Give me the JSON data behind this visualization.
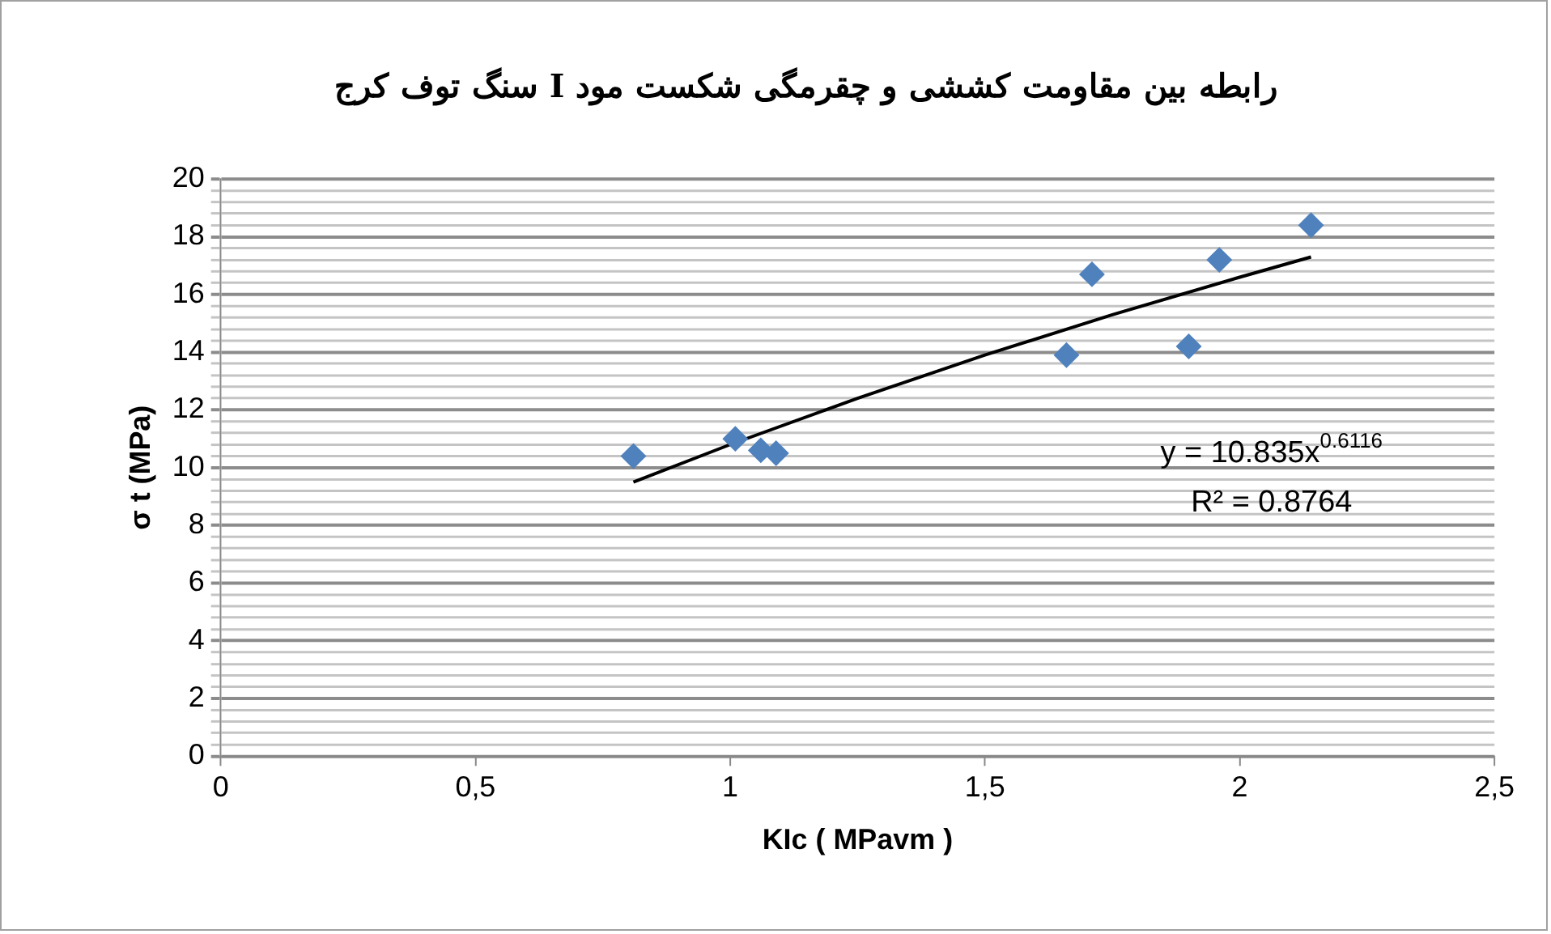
{
  "chart_data": {
    "type": "scatter",
    "title": "رابطه بین مقاومت کششی و چقرمگی شکست مود I سنگ توف کرج",
    "xlabel": "KIc ( MPavm )",
    "ylabel": "σ t (MPa)",
    "annotations": [
      "y = 10.835x$^{0.6116}$",
      "R² = 0.8764"
    ],
    "series": [
      {
        "color": "#4f81bd",
        "marker": "diamond",
        "x": [
          0.81,
          1.01,
          1.06,
          1.09,
          1.66,
          1.71,
          1.9,
          1.96,
          2.14
        ],
        "values": [
          10.4,
          11.0,
          10.6,
          10.5,
          13.9,
          16.7,
          14.2,
          17.2,
          18.4
        ]
      },
      {
        "type": "line",
        "color": "#000000",
        "marker": "none",
        "line_style": "solid",
        "x": [
          0.81,
          1.0,
          1.25,
          1.5,
          1.75,
          2.0,
          2.14
        ],
        "values": [
          9.5,
          10.8,
          12.4,
          13.9,
          15.3,
          16.6,
          17.3
        ]
      }
    ],
    "xlim": [
      0,
      2.5
    ],
    "xticks": [
      0,
      {
        "value": 0.5,
        "label": "0,5"
      },
      1,
      {
        "value": 1.5,
        "label": "1,5"
      },
      2,
      {
        "value": 2.5,
        "label": "2,5"
      }
    ],
    "ylim": [
      0,
      20
    ],
    "yticks": [
      0,
      {
        "value": 0.4,
        "label": null
      },
      {
        "value": 0.8,
        "label": null
      },
      {
        "value": 1.2,
        "label": null
      },
      {
        "value": 1.6,
        "label": null
      },
      2,
      {
        "value": 2.4,
        "label": null
      },
      {
        "value": 2.8,
        "label": null
      },
      {
        "value": 3.2,
        "label": null
      },
      {
        "value": 3.6,
        "label": null
      },
      4,
      {
        "value": 4.4,
        "label": null
      },
      {
        "value": 4.8,
        "label": null
      },
      {
        "value": 5.2,
        "label": null
      },
      {
        "value": 5.6,
        "label": null
      },
      6,
      {
        "value": 6.4,
        "label": null
      },
      {
        "value": 6.8,
        "label": null
      },
      {
        "value": 7.2,
        "label": null
      },
      {
        "value": 7.6,
        "label": null
      },
      8,
      {
        "value": 8.4,
        "label": null
      },
      {
        "value": 8.8,
        "label": null
      },
      {
        "value": 9.2,
        "label": null
      },
      {
        "value": 9.6,
        "label": null
      },
      10,
      {
        "value": 10.4,
        "label": null
      },
      {
        "value": 10.8,
        "label": null
      },
      {
        "value": 11.2,
        "label": null
      },
      {
        "value": 11.6,
        "label": null
      },
      12,
      {
        "value": 12.4,
        "label": null
      },
      {
        "value": 12.8,
        "label": null
      },
      {
        "value": 13.2,
        "label": null
      },
      {
        "value": 13.6,
        "label": null
      },
      14,
      {
        "value": 14.4,
        "label": null
      },
      {
        "value": 14.8,
        "label": null
      },
      {
        "value": 15.2,
        "label": null
      },
      {
        "value": 15.6,
        "label": null
      },
      16,
      {
        "value": 16.4,
        "label": null
      },
      {
        "value": 16.8,
        "label": null
      },
      {
        "value": 17.2,
        "label": null
      },
      {
        "value": 17.6,
        "label": null
      },
      18,
      {
        "value": 18.4,
        "label": null
      },
      {
        "value": 18.8,
        "label": null
      },
      {
        "value": 19.2,
        "label": null
      },
      {
        "value": 19.6,
        "label": null
      },
      20
    ],
    "grid": "y",
    "legend": false
  }
}
